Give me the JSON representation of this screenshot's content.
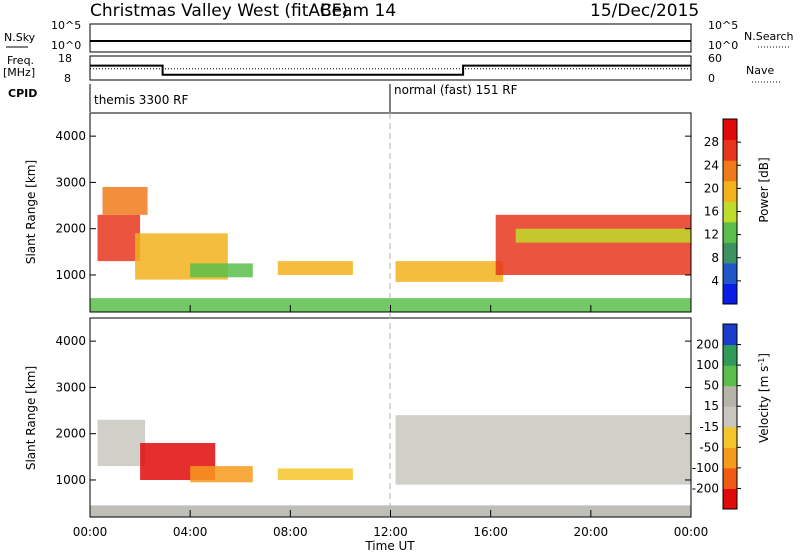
{
  "header": {
    "title": "Christmas Valley West (fitACF)",
    "beam": "Beam 14",
    "date": "15/Dec/2015"
  },
  "top_panels": {
    "nsky_label": "N.Sky",
    "nsky_ticks": [
      "10^5",
      "10^0"
    ],
    "nsearch_label": "N.Search",
    "nsearch_ticks": [
      "10^5",
      "10^0"
    ],
    "freq_label": "Freq.",
    "freq_unit": "[MHz]",
    "freq_ticks": [
      "18",
      "8"
    ],
    "nave_label": "Nave",
    "nave_ticks": [
      "60",
      "0"
    ],
    "cpid_label": "CPID",
    "cpid_segments": [
      {
        "label": "themis 3300 RF",
        "start_hour": 0
      },
      {
        "label": "normal (fast) 151 RF",
        "start_hour": 12
      }
    ]
  },
  "x_axis": {
    "label": "Time UT",
    "ticks": [
      "00:00",
      "04:00",
      "08:00",
      "12:00",
      "16:00",
      "20:00",
      "00:00"
    ]
  },
  "chart_data": [
    {
      "type": "heatmap",
      "panel": "power",
      "ylabel": "Slant Range [km]",
      "ylim": [
        200,
        4500
      ],
      "yticks": [
        "1000",
        "2000",
        "3000",
        "4000"
      ],
      "xlim_hours": [
        0,
        24
      ],
      "colorbar_label": "Power [dB]",
      "colorbar_ticks": [
        "4",
        "8",
        "12",
        "16",
        "20",
        "24",
        "28"
      ],
      "colors": [
        "#0a1ce8",
        "#1f56c9",
        "#3d9262",
        "#5abf4a",
        "#c0dc2a",
        "#f2b21c",
        "#f07a1a",
        "#e8361c",
        "#e00a0a"
      ],
      "regions": [
        {
          "x0": 0.3,
          "x1": 2.0,
          "y0": 1300,
          "y1": 2300,
          "v": 27
        },
        {
          "x0": 0.5,
          "x1": 2.3,
          "y0": 2300,
          "y1": 2900,
          "v": 24
        },
        {
          "x0": 1.8,
          "x1": 5.5,
          "y0": 900,
          "y1": 1900,
          "v": 20
        },
        {
          "x0": 4.0,
          "x1": 6.5,
          "y0": 950,
          "y1": 1250,
          "v": 12
        },
        {
          "x0": 7.5,
          "x1": 10.5,
          "y0": 1000,
          "y1": 1300,
          "v": 18
        },
        {
          "x0": 12.2,
          "x1": 16.5,
          "y0": 850,
          "y1": 1300,
          "v": 20
        },
        {
          "x0": 16.2,
          "x1": 24.0,
          "y0": 1000,
          "y1": 2300,
          "v": 28
        },
        {
          "x0": 17.0,
          "x1": 24.0,
          "y0": 1700,
          "y1": 2000,
          "v": 14
        },
        {
          "x0": 0.0,
          "x1": 24.0,
          "y0": 200,
          "y1": 500,
          "v": 10
        }
      ]
    },
    {
      "type": "heatmap",
      "panel": "velocity",
      "ylabel": "Slant Range [km]",
      "ylim": [
        200,
        4500
      ],
      "yticks": [
        "1000",
        "2000",
        "3000",
        "4000"
      ],
      "xlim_hours": [
        0,
        24
      ],
      "colorbar_label": "Velocity [m s",
      "colorbar_unit_sup": "-1",
      "colorbar_ticks": [
        "-200",
        "-100",
        "-50",
        "-15",
        "15",
        "50",
        "100",
        "200"
      ],
      "colors": [
        "#e00a0a",
        "#f05a14",
        "#f79a1c",
        "#f5c62a",
        "#c8c8c0",
        "#b4b4aa",
        "#5abf4a",
        "#2f9a5a",
        "#1a3ccc"
      ],
      "regions": [
        {
          "x0": 0.3,
          "x1": 2.2,
          "y0": 1300,
          "y1": 2300,
          "v": 0
        },
        {
          "x0": 2.0,
          "x1": 5.0,
          "y0": 1000,
          "y1": 1800,
          "v": -200
        },
        {
          "x0": 4.0,
          "x1": 6.5,
          "y0": 950,
          "y1": 1300,
          "v": -50
        },
        {
          "x0": 7.5,
          "x1": 10.5,
          "y0": 1000,
          "y1": 1250,
          "v": -30
        },
        {
          "x0": 12.2,
          "x1": 24.0,
          "y0": 900,
          "y1": 2400,
          "v": 0
        },
        {
          "x0": 0.0,
          "x1": 24.0,
          "y0": 200,
          "y1": 450,
          "v": 30
        }
      ]
    }
  ],
  "series_top": {
    "nsky_level": 1.0,
    "freq_segments": [
      {
        "from_hour": 0,
        "to_hour": 2.9,
        "mhz": 14
      },
      {
        "from_hour": 2.9,
        "to_hour": 14.9,
        "mhz": 10.2
      },
      {
        "from_hour": 14.9,
        "to_hour": 24,
        "mhz": 14
      }
    ],
    "nave_level": 28
  }
}
